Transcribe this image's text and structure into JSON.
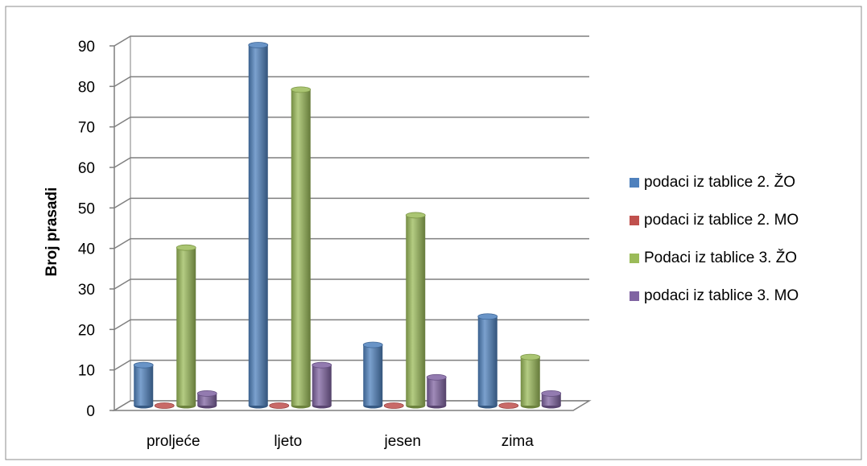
{
  "chart_data": {
    "type": "bar",
    "style": "3d-cylinder",
    "title": "",
    "xlabel": "",
    "ylabel": "Broj prasadi",
    "ylim": [
      0,
      90
    ],
    "yticks": [
      0,
      10,
      20,
      30,
      40,
      50,
      60,
      70,
      80,
      90
    ],
    "grid": true,
    "legend_position": "right",
    "categories": [
      "proljeće",
      "ljeto",
      "jesen",
      "zima"
    ],
    "series": [
      {
        "name": "podaci iz tablice 2. ŽO",
        "color": "#4F81BD",
        "values": [
          10,
          89,
          15,
          22
        ]
      },
      {
        "name": "podaci iz tablice 2. MO",
        "color": "#C0504D",
        "values": [
          0,
          0,
          0,
          0
        ]
      },
      {
        "name": "Podaci iz tablice 3. ŽO",
        "color": "#9BBB59",
        "values": [
          39,
          78,
          47,
          12
        ]
      },
      {
        "name": "podaci iz tablice 3. MO",
        "color": "#8064A2",
        "values": [
          3,
          10,
          7,
          3
        ]
      }
    ]
  }
}
